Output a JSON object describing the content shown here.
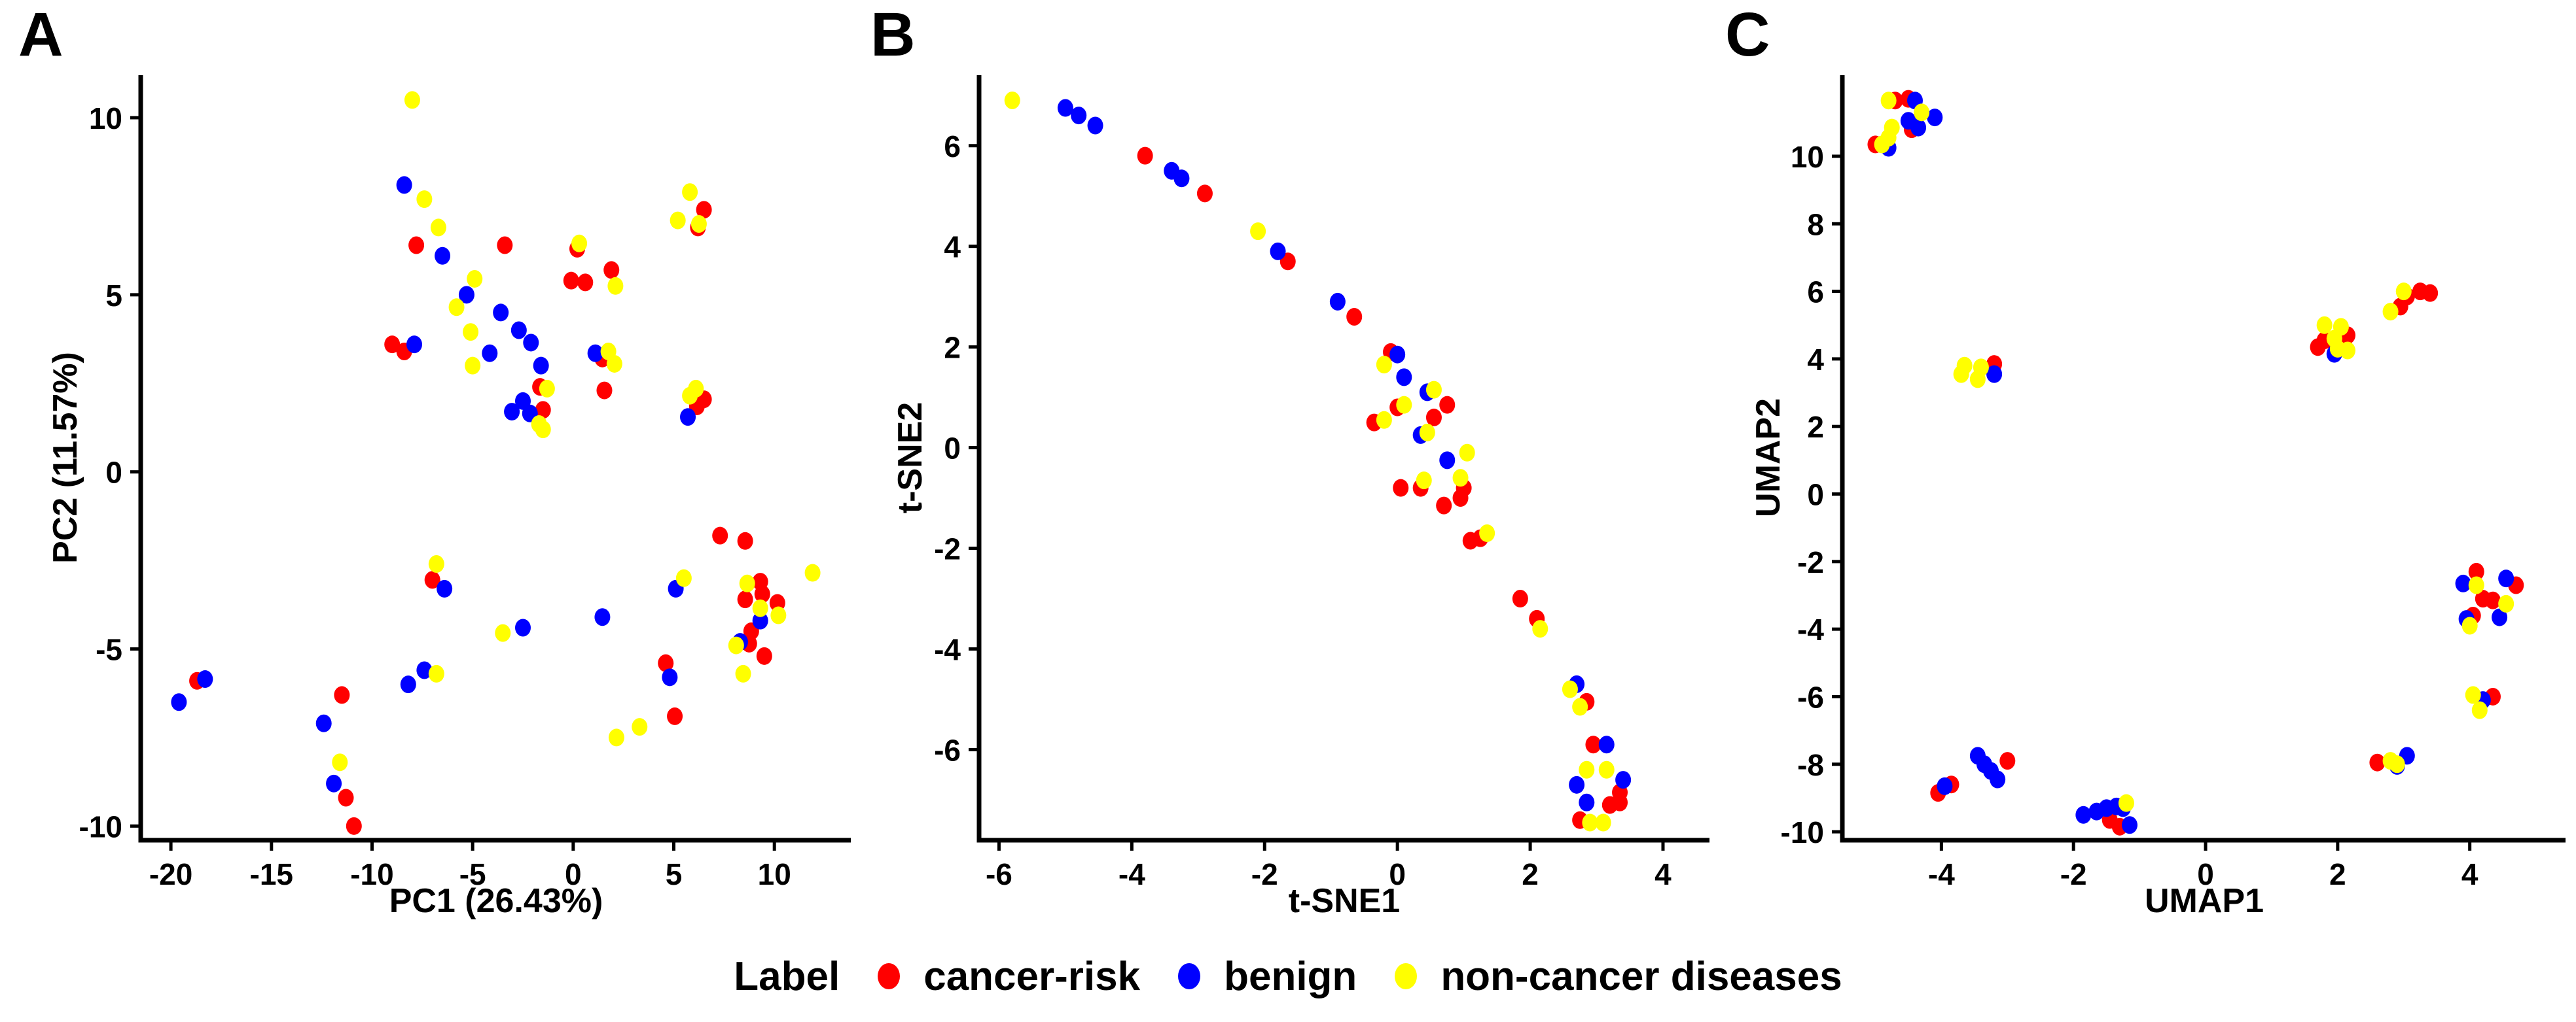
{
  "figure": {
    "panels": [
      {
        "letter": "A",
        "xlabel": "PC1 (26.43%)",
        "ylabel": "PC2 (11.57%)"
      },
      {
        "letter": "B",
        "xlabel": "t-SNE1",
        "ylabel": "t-SNE2"
      },
      {
        "letter": "C",
        "xlabel": "UMAP1",
        "ylabel": "UMAP2"
      }
    ],
    "legend": {
      "title": "Label",
      "items": [
        {
          "label": "cancer-risk",
          "color": "#FF0000"
        },
        {
          "label": "benign",
          "color": "#0000FF"
        },
        {
          "label": "non-cancer diseases",
          "color": "#FFFF00"
        }
      ]
    }
  },
  "chart_data": [
    {
      "type": "scatter",
      "panel": "A",
      "title": "A",
      "xlabel": "PC1 (26.43%)",
      "ylabel": "PC2 (11.57%)",
      "xlim": [
        -21.5,
        13.8
      ],
      "ylim": [
        -10.4,
        11.2
      ],
      "xticks": [
        -20,
        -15,
        -10,
        -5,
        0,
        5,
        10
      ],
      "yticks": [
        10,
        5,
        0,
        -5,
        -10
      ],
      "grid": false,
      "legend_position": "bottom",
      "series": [
        {
          "name": "cancer-risk",
          "color": "#FF0000",
          "points": [
            [
              -7.8,
              6.4
            ],
            [
              -3.4,
              6.4
            ],
            [
              0.2,
              6.3
            ],
            [
              1.9,
              5.7
            ],
            [
              -0.1,
              5.4
            ],
            [
              0.6,
              5.35
            ],
            [
              6.5,
              7.4
            ],
            [
              6.2,
              6.9
            ],
            [
              -9.0,
              3.6
            ],
            [
              -8.4,
              3.4
            ],
            [
              1.45,
              3.2
            ],
            [
              1.55,
              2.3
            ],
            [
              -1.65,
              2.4
            ],
            [
              -1.5,
              1.75
            ],
            [
              6.5,
              2.05
            ],
            [
              6.15,
              1.85
            ],
            [
              -18.7,
              -5.9
            ],
            [
              -11.5,
              -6.3
            ],
            [
              -11.3,
              -9.2
            ],
            [
              -10.9,
              -10.0
            ],
            [
              -7.0,
              -3.05
            ],
            [
              5.05,
              -6.9
            ],
            [
              4.6,
              -5.4
            ],
            [
              7.3,
              -1.8
            ],
            [
              8.55,
              -1.95
            ],
            [
              9.3,
              -3.1
            ],
            [
              8.55,
              -3.6
            ],
            [
              9.4,
              -3.45
            ],
            [
              10.15,
              -3.7
            ],
            [
              8.85,
              -4.5
            ],
            [
              8.75,
              -4.85
            ],
            [
              9.5,
              -5.2
            ]
          ]
        },
        {
          "name": "benign",
          "color": "#0000FF",
          "points": [
            [
              -8.4,
              8.1
            ],
            [
              -6.5,
              6.1
            ],
            [
              -5.3,
              5.0
            ],
            [
              -3.6,
              4.5
            ],
            [
              -2.7,
              4.0
            ],
            [
              -2.1,
              3.65
            ],
            [
              -7.9,
              3.6
            ],
            [
              -4.15,
              3.35
            ],
            [
              -1.6,
              3.0
            ],
            [
              1.1,
              3.35
            ],
            [
              -2.5,
              2.0
            ],
            [
              -3.05,
              1.7
            ],
            [
              -2.15,
              1.65
            ],
            [
              5.7,
              1.55
            ],
            [
              -18.3,
              -5.85
            ],
            [
              -19.6,
              -6.5
            ],
            [
              -12.4,
              -7.1
            ],
            [
              -11.9,
              -8.8
            ],
            [
              -7.4,
              -5.6
            ],
            [
              -8.2,
              -6.0
            ],
            [
              -6.4,
              -3.3
            ],
            [
              -2.5,
              -4.4
            ],
            [
              1.45,
              -4.1
            ],
            [
              4.8,
              -5.8
            ],
            [
              5.1,
              -3.3
            ],
            [
              9.3,
              -4.2
            ],
            [
              8.3,
              -4.8
            ]
          ]
        },
        {
          "name": "non-cancer diseases",
          "color": "#FFFF00",
          "points": [
            [
              -8.0,
              10.5
            ],
            [
              -7.4,
              7.7
            ],
            [
              -6.7,
              6.9
            ],
            [
              0.3,
              6.45
            ],
            [
              2.1,
              5.25
            ],
            [
              5.8,
              7.9
            ],
            [
              5.2,
              7.1
            ],
            [
              6.25,
              7.0
            ],
            [
              -4.9,
              5.45
            ],
            [
              -5.8,
              4.65
            ],
            [
              -5.1,
              3.95
            ],
            [
              -5.0,
              3.0
            ],
            [
              1.75,
              3.4
            ],
            [
              2.05,
              3.05
            ],
            [
              -1.3,
              2.35
            ],
            [
              -1.7,
              1.35
            ],
            [
              -1.5,
              1.2
            ],
            [
              6.1,
              2.35
            ],
            [
              5.8,
              2.15
            ],
            [
              -11.6,
              -8.2
            ],
            [
              -6.8,
              -2.6
            ],
            [
              -6.8,
              -5.7
            ],
            [
              -3.5,
              -4.55
            ],
            [
              2.15,
              -7.5
            ],
            [
              3.3,
              -7.2
            ],
            [
              5.5,
              -3.0
            ],
            [
              11.9,
              -2.85
            ],
            [
              8.65,
              -3.15
            ],
            [
              9.3,
              -3.85
            ],
            [
              10.2,
              -4.05
            ],
            [
              8.1,
              -4.9
            ],
            [
              8.45,
              -5.7
            ]
          ]
        }
      ]
    },
    {
      "type": "scatter",
      "panel": "B",
      "title": "B",
      "xlabel": "t-SNE1",
      "ylabel": "t-SNE2",
      "xlim": [
        -6.3,
        4.7
      ],
      "ylim": [
        -7.8,
        7.4
      ],
      "xticks": [
        -6,
        -4,
        -2,
        0,
        2,
        4
      ],
      "yticks": [
        6,
        4,
        2,
        0,
        -2,
        -4,
        -6
      ],
      "grid": false,
      "legend_position": "bottom",
      "series": [
        {
          "name": "cancer-risk",
          "color": "#FF0000",
          "points": [
            [
              -3.8,
              5.8
            ],
            [
              -2.9,
              5.05
            ],
            [
              -1.65,
              3.7
            ],
            [
              -0.65,
              2.6
            ],
            [
              -0.1,
              1.9
            ],
            [
              0,
              0.8
            ],
            [
              0.75,
              0.85
            ],
            [
              0.55,
              0.6
            ],
            [
              -0.35,
              0.5
            ],
            [
              0.35,
              -0.8
            ],
            [
              0.05,
              -0.8
            ],
            [
              1.0,
              -0.8
            ],
            [
              0.95,
              -1.0
            ],
            [
              0.7,
              -1.15
            ],
            [
              1.1,
              -1.85
            ],
            [
              1.25,
              -1.8
            ],
            [
              1.85,
              -3.0
            ],
            [
              2.1,
              -3.4
            ],
            [
              2.85,
              -5.05
            ],
            [
              2.95,
              -5.9
            ],
            [
              3.35,
              -6.85
            ],
            [
              3.2,
              -7.1
            ],
            [
              3.35,
              -7.05
            ],
            [
              2.75,
              -7.4
            ]
          ]
        },
        {
          "name": "benign",
          "color": "#0000FF",
          "points": [
            [
              -5.0,
              6.75
            ],
            [
              -4.8,
              6.6
            ],
            [
              -4.55,
              6.4
            ],
            [
              -3.4,
              5.5
            ],
            [
              -3.25,
              5.35
            ],
            [
              -1.8,
              3.9
            ],
            [
              -0.9,
              2.9
            ],
            [
              0,
              1.85
            ],
            [
              0.1,
              1.4
            ],
            [
              0.45,
              1.1
            ],
            [
              0.35,
              0.25
            ],
            [
              0.75,
              -0.25
            ],
            [
              2.7,
              -4.7
            ],
            [
              3.15,
              -5.9
            ],
            [
              3.4,
              -6.6
            ],
            [
              2.7,
              -6.7
            ],
            [
              2.85,
              -7.05
            ]
          ]
        },
        {
          "name": "non-cancer diseases",
          "color": "#FFFF00",
          "points": [
            [
              -5.8,
              6.9
            ],
            [
              -2.1,
              4.3
            ],
            [
              -0.2,
              1.65
            ],
            [
              0.55,
              1.15
            ],
            [
              0.1,
              0.85
            ],
            [
              -0.2,
              0.55
            ],
            [
              0.45,
              0.3
            ],
            [
              1.05,
              -0.1
            ],
            [
              0.95,
              -0.6
            ],
            [
              0.4,
              -0.65
            ],
            [
              1.35,
              -1.7
            ],
            [
              2.15,
              -3.6
            ],
            [
              2.6,
              -4.8
            ],
            [
              2.75,
              -5.15
            ],
            [
              2.85,
              -6.4
            ],
            [
              3.15,
              -6.4
            ],
            [
              2.9,
              -7.45
            ],
            [
              3.1,
              -7.45
            ]
          ]
        }
      ]
    },
    {
      "type": "scatter",
      "panel": "C",
      "title": "C",
      "xlabel": "UMAP1",
      "ylabel": "UMAP2",
      "xlim": [
        -5.5,
        5.45
      ],
      "ylim": [
        -10.25,
        12.4
      ],
      "xticks": [
        -4,
        -2,
        0,
        2,
        4
      ],
      "yticks": [
        10,
        8,
        6,
        4,
        2,
        0,
        -2,
        -4,
        -6,
        -8,
        -10
      ],
      "grid": false,
      "legend_position": "bottom",
      "series": [
        {
          "name": "cancer-risk",
          "color": "#FF0000",
          "points": [
            [
              -4.7,
              11.65
            ],
            [
              -4.5,
              11.7
            ],
            [
              -4.45,
              10.8
            ],
            [
              -5.0,
              10.35
            ],
            [
              -3.2,
              3.85
            ],
            [
              2.15,
              4.7
            ],
            [
              1.8,
              4.55
            ],
            [
              2.05,
              4.45
            ],
            [
              1.7,
              4.35
            ],
            [
              3.05,
              5.85
            ],
            [
              3.25,
              6.0
            ],
            [
              3.4,
              5.95
            ],
            [
              2.95,
              5.55
            ],
            [
              4.1,
              -2.3
            ],
            [
              4.7,
              -2.7
            ],
            [
              4.2,
              -3.1
            ],
            [
              4.35,
              -3.15
            ],
            [
              4.05,
              -3.6
            ],
            [
              4.35,
              -6.0
            ],
            [
              2.6,
              -7.95
            ],
            [
              -3.0,
              -7.9
            ],
            [
              -3.85,
              -8.6
            ],
            [
              -4.05,
              -8.85
            ],
            [
              -1.45,
              -9.65
            ],
            [
              -1.3,
              -9.85
            ]
          ]
        },
        {
          "name": "benign",
          "color": "#0000FF",
          "points": [
            [
              -4.4,
              11.65
            ],
            [
              -4.5,
              11.05
            ],
            [
              -4.1,
              11.15
            ],
            [
              -4.35,
              10.85
            ],
            [
              -4.8,
              10.25
            ],
            [
              -3.2,
              3.55
            ],
            [
              1.95,
              4.15
            ],
            [
              3.9,
              -2.65
            ],
            [
              4.55,
              -2.5
            ],
            [
              3.95,
              -3.7
            ],
            [
              4.45,
              -3.65
            ],
            [
              4.2,
              -6.1
            ],
            [
              3.05,
              -7.75
            ],
            [
              2.9,
              -8.05
            ],
            [
              -3.45,
              -7.75
            ],
            [
              -3.35,
              -8.0
            ],
            [
              -3.25,
              -8.2
            ],
            [
              -3.15,
              -8.45
            ],
            [
              -3.95,
              -8.65
            ],
            [
              -1.85,
              -9.5
            ],
            [
              -1.65,
              -9.4
            ],
            [
              -1.5,
              -9.3
            ],
            [
              -1.35,
              -9.25
            ],
            [
              -1.25,
              -9.3
            ],
            [
              -1.15,
              -9.8
            ]
          ]
        },
        {
          "name": "non-cancer diseases",
          "color": "#FFFF00",
          "points": [
            [
              -4.8,
              11.65
            ],
            [
              -4.3,
              11.3
            ],
            [
              -4.75,
              10.85
            ],
            [
              -4.8,
              10.55
            ],
            [
              -4.9,
              10.35
            ],
            [
              -3.65,
              3.8
            ],
            [
              -3.7,
              3.55
            ],
            [
              -3.4,
              3.75
            ],
            [
              -3.45,
              3.4
            ],
            [
              1.8,
              5.0
            ],
            [
              2.05,
              4.95
            ],
            [
              1.95,
              4.6
            ],
            [
              2.0,
              4.3
            ],
            [
              2.15,
              4.25
            ],
            [
              3.0,
              6.0
            ],
            [
              2.8,
              5.4
            ],
            [
              4.1,
              -2.7
            ],
            [
              4.55,
              -3.25
            ],
            [
              4.0,
              -3.9
            ],
            [
              4.05,
              -5.95
            ],
            [
              4.15,
              -6.4
            ],
            [
              2.8,
              -7.9
            ],
            [
              2.9,
              -8.0
            ],
            [
              -1.2,
              -9.15
            ]
          ]
        }
      ]
    }
  ]
}
